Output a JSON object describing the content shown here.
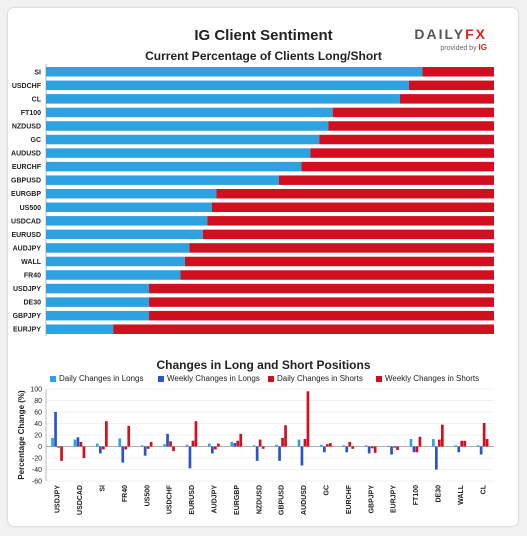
{
  "header": {
    "title": "IG Client Sentiment",
    "logo_text_main": "DAILY",
    "logo_text_accent": "FX",
    "logo_sub_text": "provided by",
    "logo_sub_brand": "IG"
  },
  "colors": {
    "long": "#2ea1e0",
    "short": "#d0101f",
    "weekly_long": "#2b55c6",
    "weekly_short": "#d0101f"
  },
  "chart_data": [
    {
      "type": "bar",
      "orientation": "horizontal",
      "stacked": true,
      "title": "Current Percentage of Clients Long/Short",
      "categories": [
        "SI",
        "USDCHF",
        "CL",
        "FT100",
        "NZDUSD",
        "GC",
        "AUDUSD",
        "EURCHF",
        "GBPUSD",
        "EURGBP",
        "US500",
        "USDCAD",
        "EURUSD",
        "AUDJPY",
        "WALL",
        "FR40",
        "USDJPY",
        "DE30",
        "GBPJPY",
        "EURJPY"
      ],
      "series": [
        {
          "values": [
            84,
            81,
            79,
            64,
            63,
            61,
            59,
            57,
            52,
            38,
            37,
            36,
            35,
            32,
            31,
            30,
            23,
            23,
            23,
            15
          ]
        },
        {
          "values": [
            16,
            19,
            21,
            36,
            37,
            39,
            41,
            43,
            48,
            62,
            63,
            64,
            65,
            68,
            69,
            70,
            77,
            77,
            77,
            85
          ]
        }
      ],
      "xlim": [
        0,
        100
      ]
    },
    {
      "type": "bar",
      "title": "Changes in Long and Short Positions",
      "ylabel": "Percentage Change (%)",
      "ylim": [
        -60,
        100
      ],
      "yticks": [
        100,
        80,
        60,
        40,
        20,
        0,
        -20,
        -40,
        -60
      ],
      "categories": [
        "USDJPY",
        "USDCAD",
        "SI",
        "FR40",
        "US500",
        "USDCHF",
        "EURUSD",
        "AUDJPY",
        "EURGBP",
        "NZDUSD",
        "GBPUSD",
        "AUDUSD",
        "GC",
        "EURCHF",
        "GBPJPY",
        "EURJPY",
        "FT100",
        "DE30",
        "WALL",
        "CL"
      ],
      "series": [
        {
          "name": "Daily Changes in Longs",
          "values": [
            15,
            12,
            5,
            14,
            2,
            4,
            3,
            5,
            8,
            2,
            3,
            12,
            3,
            2,
            2,
            1,
            13,
            13,
            2,
            2
          ]
        },
        {
          "name": "Weekly Changes in Longs",
          "values": [
            60,
            16,
            -12,
            -28,
            -16,
            22,
            -38,
            -12,
            6,
            -25,
            -25,
            -33,
            -10,
            -10,
            -12,
            -14,
            -10,
            -40,
            -10,
            -14
          ]
        },
        {
          "name": "Daily Changes in Shorts",
          "values": [
            -2,
            8,
            -5,
            -5,
            -4,
            9,
            10,
            -5,
            10,
            12,
            15,
            13,
            4,
            8,
            -3,
            -2,
            -10,
            12,
            10,
            41
          ]
        },
        {
          "name": "Weekly Changes in Shorts",
          "values": [
            -25,
            -20,
            44,
            36,
            8,
            -8,
            44,
            5,
            22,
            -4,
            37,
            96,
            6,
            -4,
            -11,
            -6,
            17,
            38,
            10,
            13
          ]
        }
      ]
    }
  ]
}
